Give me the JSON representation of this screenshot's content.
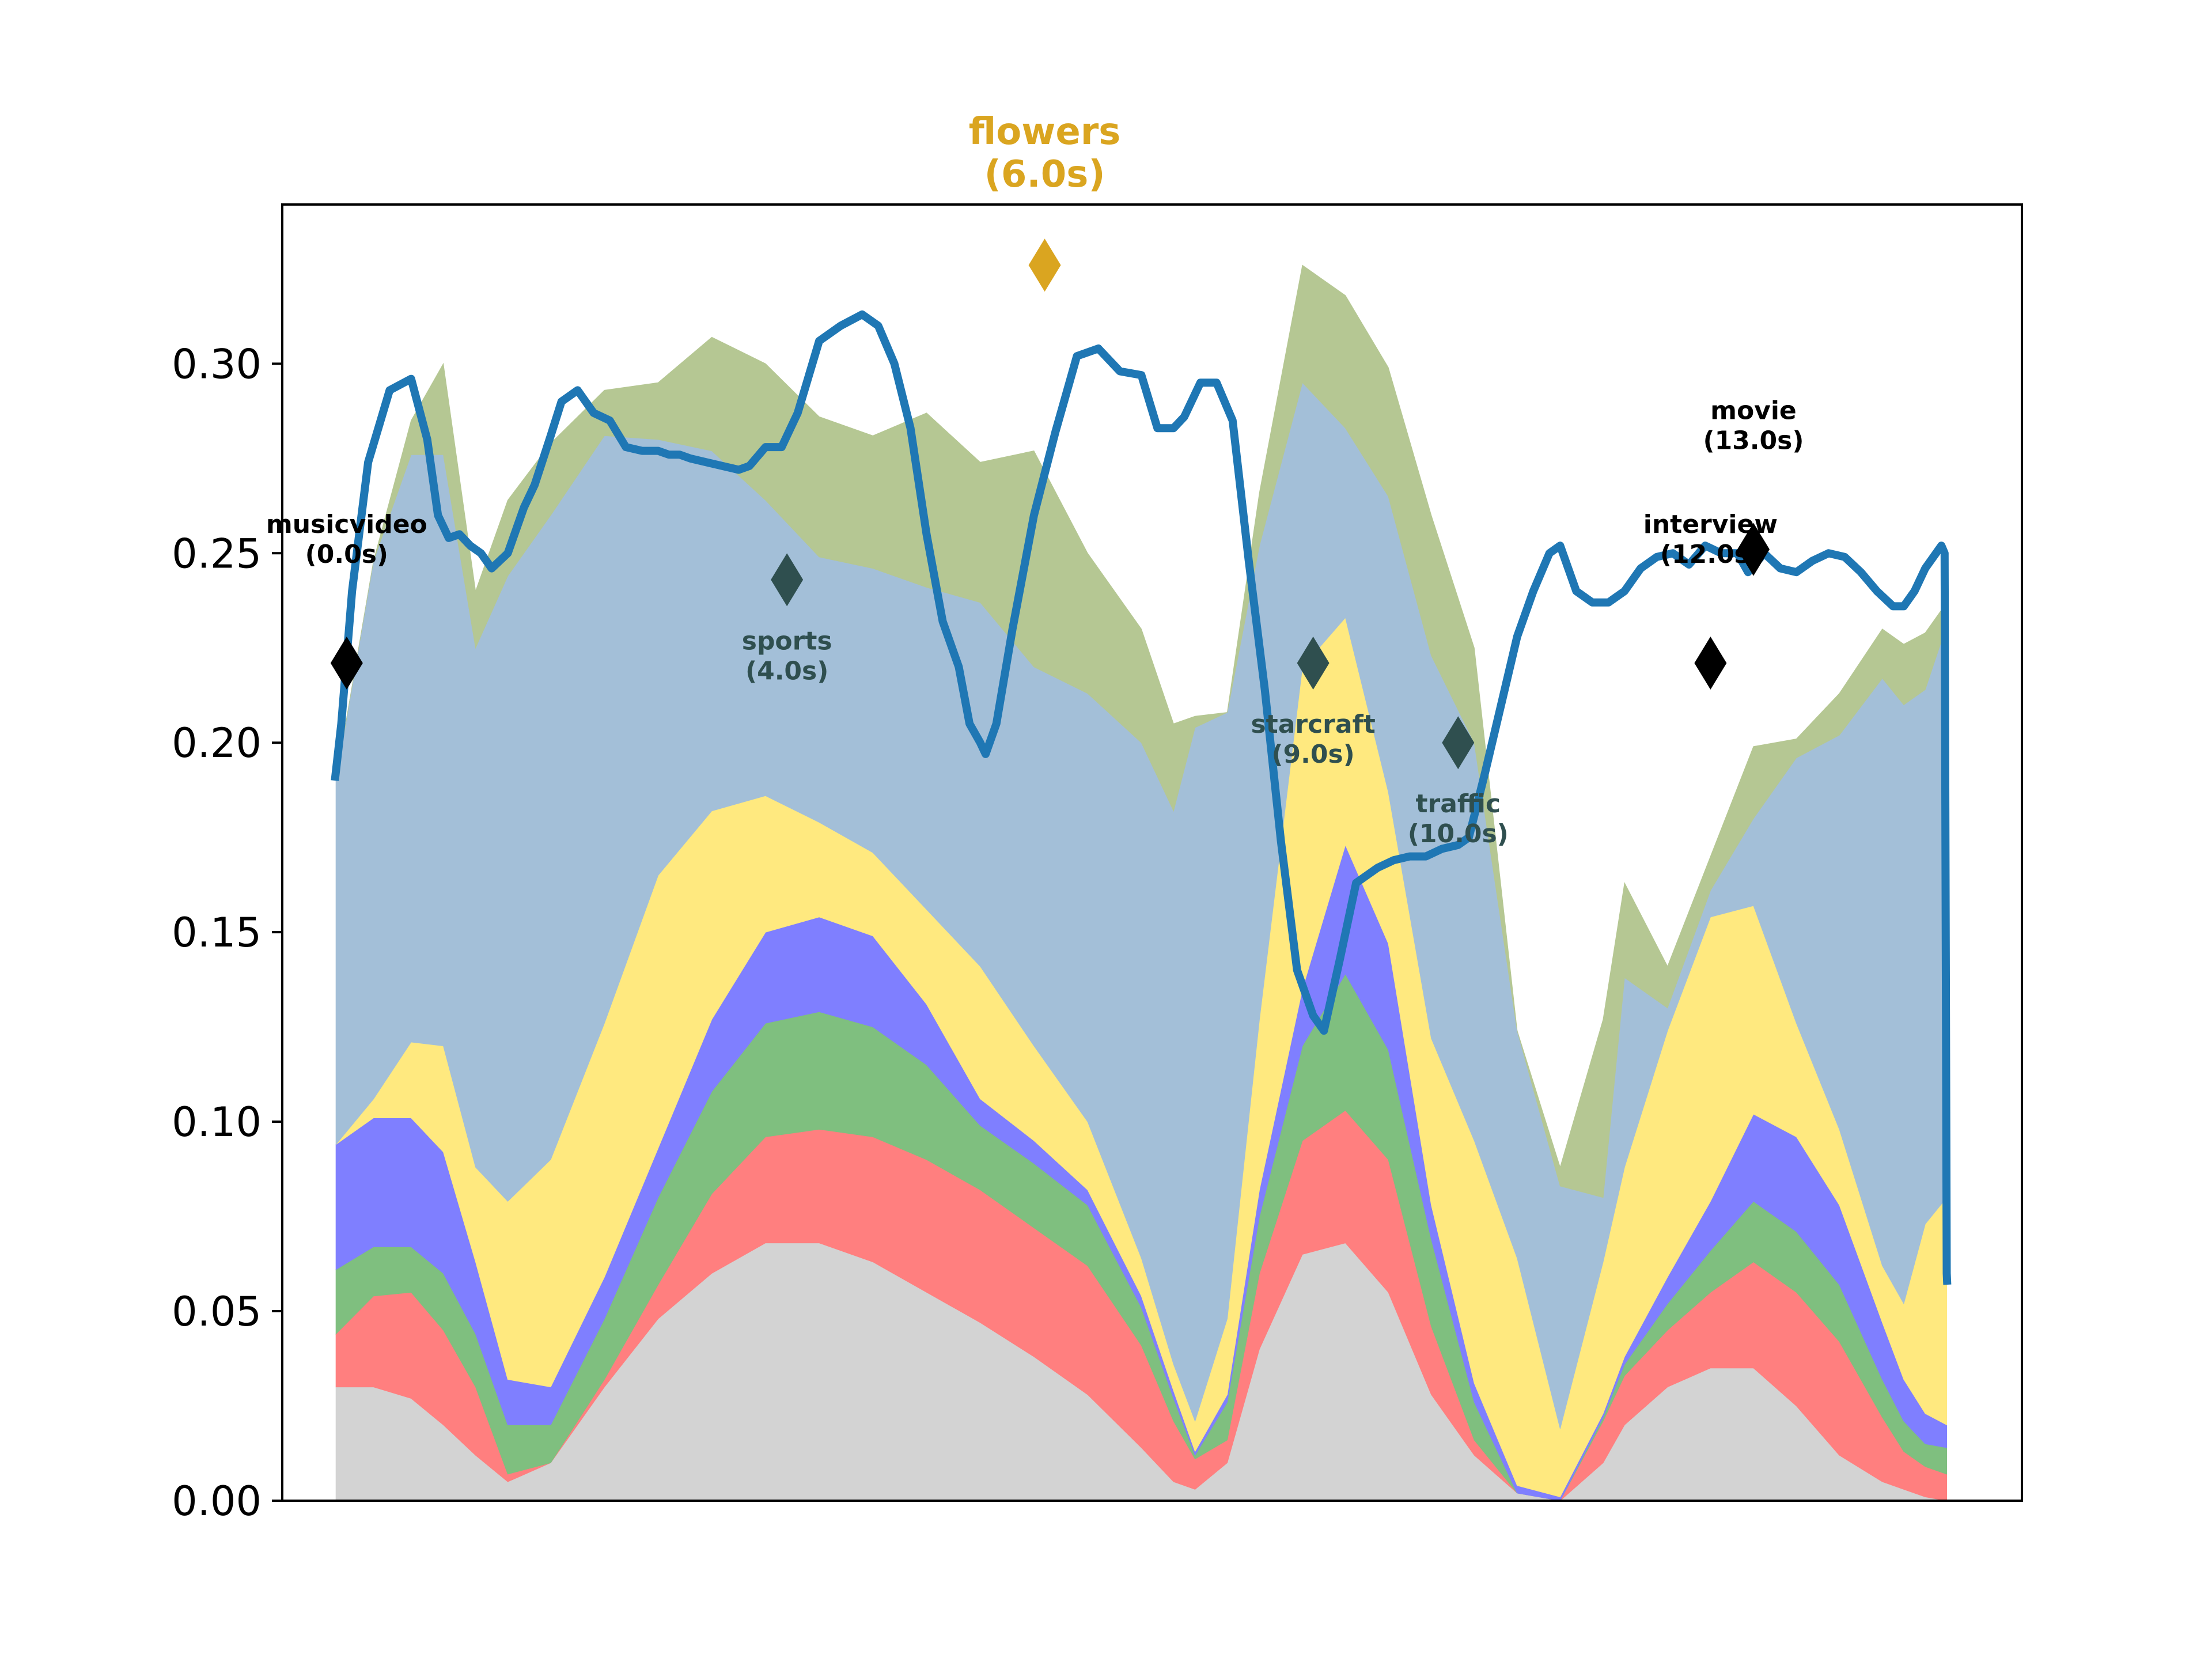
{
  "chart_data": {
    "type": "area",
    "title": "",
    "xlabel": "",
    "ylabel": "",
    "x_ticks_shown": false,
    "ylim": [
      0,
      0.342
    ],
    "xlim": [
      -0.5,
      15.7
    ],
    "yticks": [
      0.0,
      0.05,
      0.1,
      0.15,
      0.2,
      0.25,
      0.3
    ],
    "ytick_labels": [
      "0.00",
      "0.05",
      "0.10",
      "0.15",
      "0.20",
      "0.25",
      "0.30"
    ],
    "grid": false,
    "legend": "none",
    "layer_x": [
      0.0,
      0.35,
      0.7,
      1.0,
      1.3,
      1.6,
      2.0,
      2.5,
      3.0,
      3.5,
      4.0,
      4.5,
      5.0,
      5.5,
      6.0,
      6.5,
      7.0,
      7.5,
      7.8,
      8.0,
      8.3,
      8.6,
      9.0,
      9.4,
      9.8,
      10.2,
      10.6,
      11.0,
      11.4,
      11.8,
      12.0,
      12.4,
      12.8,
      13.2,
      13.6,
      14.0,
      14.4,
      14.6,
      14.8,
      15.0
    ],
    "series": [
      {
        "color": "#d3d3d3",
        "values": [
          0.03,
          0.03,
          0.027,
          0.02,
          0.012,
          0.005,
          0.01,
          0.03,
          0.048,
          0.06,
          0.068,
          0.068,
          0.063,
          0.055,
          0.047,
          0.038,
          0.028,
          0.014,
          0.005,
          0.003,
          0.01,
          0.04,
          0.065,
          0.068,
          0.055,
          0.028,
          0.012,
          0.002,
          0.0,
          0.01,
          0.02,
          0.03,
          0.035,
          0.035,
          0.025,
          0.012,
          0.005,
          0.003,
          0.001,
          0.0
        ]
      },
      {
        "color": "#ff7f7f",
        "values": [
          0.014,
          0.024,
          0.028,
          0.025,
          0.018,
          0.002,
          0.0,
          0.002,
          0.009,
          0.021,
          0.028,
          0.03,
          0.033,
          0.035,
          0.035,
          0.034,
          0.034,
          0.027,
          0.016,
          0.008,
          0.006,
          0.02,
          0.03,
          0.035,
          0.035,
          0.018,
          0.004,
          0.0,
          0.0,
          0.011,
          0.013,
          0.015,
          0.02,
          0.028,
          0.03,
          0.03,
          0.017,
          0.01,
          0.008,
          0.007
        ]
      },
      {
        "color": "#7fbf7f",
        "values": [
          0.017,
          0.013,
          0.012,
          0.015,
          0.014,
          0.013,
          0.01,
          0.016,
          0.023,
          0.027,
          0.03,
          0.031,
          0.029,
          0.025,
          0.017,
          0.017,
          0.016,
          0.01,
          0.006,
          0.001,
          0.01,
          0.015,
          0.025,
          0.036,
          0.029,
          0.023,
          0.01,
          0.0,
          0.0,
          0.001,
          0.003,
          0.007,
          0.011,
          0.016,
          0.016,
          0.015,
          0.01,
          0.008,
          0.006,
          0.007
        ]
      },
      {
        "color": "#7f7fff",
        "values": [
          0.033,
          0.034,
          0.034,
          0.032,
          0.019,
          0.012,
          0.01,
          0.011,
          0.013,
          0.019,
          0.024,
          0.025,
          0.024,
          0.016,
          0.007,
          0.006,
          0.004,
          0.003,
          0.002,
          0.001,
          0.002,
          0.007,
          0.015,
          0.034,
          0.028,
          0.009,
          0.005,
          0.002,
          0.001,
          0.001,
          0.002,
          0.007,
          0.013,
          0.023,
          0.025,
          0.021,
          0.015,
          0.011,
          0.008,
          0.006
        ]
      },
      {
        "color": "#ffe97f",
        "values": [
          0.0,
          0.005,
          0.02,
          0.028,
          0.025,
          0.047,
          0.06,
          0.067,
          0.072,
          0.055,
          0.036,
          0.025,
          0.022,
          0.025,
          0.035,
          0.025,
          0.018,
          0.01,
          0.007,
          0.008,
          0.02,
          0.045,
          0.085,
          0.06,
          0.04,
          0.044,
          0.064,
          0.06,
          0.018,
          0.04,
          0.05,
          0.065,
          0.075,
          0.055,
          0.03,
          0.02,
          0.015,
          0.02,
          0.05,
          0.06
        ]
      },
      {
        "color": "#a3bfd8",
        "values": [
          0.096,
          0.142,
          0.155,
          0.156,
          0.137,
          0.165,
          0.17,
          0.155,
          0.115,
          0.095,
          0.078,
          0.07,
          0.075,
          0.085,
          0.096,
          0.1,
          0.113,
          0.136,
          0.146,
          0.183,
          0.16,
          0.125,
          0.075,
          0.05,
          0.078,
          0.101,
          0.105,
          0.06,
          0.064,
          0.017,
          0.05,
          0.006,
          0.007,
          0.023,
          0.07,
          0.104,
          0.155,
          0.158,
          0.141,
          0.151
        ]
      },
      {
        "color": "#b5c793",
        "values": [
          0.0,
          0.0,
          0.009,
          0.024,
          0.015,
          0.02,
          0.019,
          0.012,
          0.015,
          0.03,
          0.036,
          0.037,
          0.035,
          0.046,
          0.037,
          0.057,
          0.037,
          0.03,
          0.023,
          0.003,
          0.0,
          0.014,
          0.031,
          0.035,
          0.034,
          0.037,
          0.025,
          0.0,
          0.005,
          0.047,
          0.025,
          0.011,
          0.009,
          0.019,
          0.005,
          0.011,
          0.013,
          0.016,
          0.015,
          0.006
        ]
      }
    ],
    "total_line": {
      "color": "#1f77b4",
      "x": [
        -0.01,
        0.05,
        0.15,
        0.3,
        0.5,
        0.7,
        0.85,
        0.95,
        1.05,
        1.15,
        1.25,
        1.35,
        1.45,
        1.6,
        1.75,
        1.85,
        2.0,
        2.1,
        2.25,
        2.4,
        2.55,
        2.7,
        2.85,
        3.0,
        3.1,
        3.2,
        3.3,
        3.45,
        3.6,
        3.75,
        3.85,
        4.0,
        4.15,
        4.3,
        4.5,
        4.7,
        4.9,
        5.05,
        5.2,
        5.35,
        5.5,
        5.65,
        5.8,
        5.9,
        6.0,
        6.05,
        6.15,
        6.3,
        6.5,
        6.7,
        6.9,
        7.1,
        7.3,
        7.5,
        7.65,
        7.8,
        7.9,
        8.05,
        8.2,
        8.35,
        8.5,
        8.65,
        8.8,
        8.95,
        9.1,
        9.2,
        9.35,
        9.5,
        9.7,
        9.85,
        10.0,
        10.15,
        10.3,
        10.45,
        10.55,
        10.7,
        10.85,
        11.0,
        11.15,
        11.3,
        11.4,
        11.55,
        11.7,
        11.85,
        12.0,
        12.15,
        12.3,
        12.45,
        12.6,
        12.75,
        12.9,
        13.05,
        13.15,
        13.3,
        13.45,
        13.6,
        13.75,
        13.9,
        14.05,
        14.2,
        14.35,
        14.5,
        14.6,
        14.7,
        14.8,
        14.9,
        14.95,
        14.98,
        15.0,
        15.005
      ],
      "y": [
        0.19,
        0.205,
        0.24,
        0.274,
        0.293,
        0.296,
        0.28,
        0.26,
        0.254,
        0.255,
        0.252,
        0.25,
        0.246,
        0.25,
        0.262,
        0.268,
        0.281,
        0.29,
        0.293,
        0.287,
        0.285,
        0.278,
        0.277,
        0.277,
        0.276,
        0.276,
        0.275,
        0.274,
        0.273,
        0.272,
        0.273,
        0.278,
        0.278,
        0.287,
        0.306,
        0.31,
        0.313,
        0.31,
        0.3,
        0.283,
        0.255,
        0.232,
        0.22,
        0.205,
        0.2,
        0.197,
        0.205,
        0.23,
        0.26,
        0.282,
        0.302,
        0.304,
        0.298,
        0.297,
        0.283,
        0.283,
        0.286,
        0.295,
        0.295,
        0.285,
        0.248,
        0.214,
        0.174,
        0.14,
        0.128,
        0.124,
        0.143,
        0.163,
        0.167,
        0.169,
        0.17,
        0.17,
        0.172,
        0.173,
        0.175,
        0.192,
        0.21,
        0.228,
        0.24,
        0.25,
        0.252,
        0.24,
        0.237,
        0.237,
        0.24,
        0.246,
        0.249,
        0.25,
        0.247,
        0.252,
        0.25,
        0.25,
        0.245,
        0.25,
        0.246,
        0.245,
        0.248,
        0.25,
        0.249,
        0.245,
        0.24,
        0.236,
        0.236,
        0.24,
        0.246,
        0.25,
        0.252,
        0.25,
        0.06,
        0.057
      ]
    },
    "markers": [
      {
        "x": 0.1,
        "y": 0.221,
        "label": "musicvideo\n(0.0s)",
        "color": "#000000",
        "label_pos": "above"
      },
      {
        "x": 4.2,
        "y": 0.243,
        "label": "sports\n(4.0s)",
        "color": "#2f4f4f",
        "label_pos": "below"
      },
      {
        "x": 6.6,
        "y": 0.326,
        "label": "flowers\n(6.0s)",
        "color": "#daa520",
        "label_pos": "top-highlight"
      },
      {
        "x": 9.1,
        "y": 0.221,
        "label": "starcraft\n(9.0s)",
        "color": "#2f4f4f",
        "label_pos": "below"
      },
      {
        "x": 10.45,
        "y": 0.2,
        "label": "traffic\n(10.0s)",
        "color": "#2f4f4f",
        "label_pos": "below"
      },
      {
        "x": 12.8,
        "y": 0.221,
        "label": "interview\n(12.0s)",
        "color": "#000000",
        "label_pos": "above"
      },
      {
        "x": 13.2,
        "y": 0.251,
        "label": "movie\n(13.0s)",
        "color": "#000000",
        "label_pos": "above"
      }
    ]
  }
}
